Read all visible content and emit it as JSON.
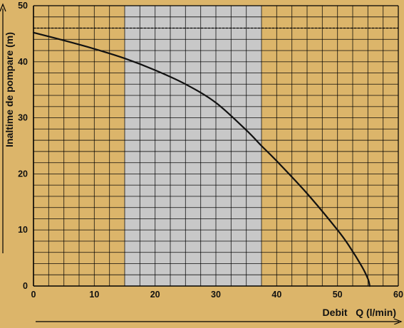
{
  "chart_data": {
    "type": "line",
    "title": "",
    "xlabel": "Debit   Q (l/min)",
    "ylabel": "Inaltime de pompare (m)",
    "xlim": [
      0,
      60
    ],
    "ylim": [
      0,
      50
    ],
    "x_ticks": [
      "0",
      "10",
      "20",
      "30",
      "40",
      "50",
      "60"
    ],
    "y_ticks": [
      "0",
      "10",
      "20",
      "30",
      "40",
      "50"
    ],
    "grid": true,
    "highlight_band": {
      "x_from": 15,
      "x_to": 37.5
    },
    "reference_line_y": 46,
    "series": [
      {
        "x": [
          0,
          5,
          10,
          15,
          20,
          25,
          30,
          35,
          37.5,
          40,
          45,
          50,
          52,
          54,
          55,
          55.3
        ],
        "y": [
          45.2,
          43.8,
          42.3,
          40.6,
          38.5,
          36.0,
          32.7,
          27.8,
          25.0,
          22.3,
          16.5,
          10.0,
          7.0,
          3.5,
          1.3,
          0
        ]
      }
    ]
  },
  "colors": {
    "background": "#dcb56a",
    "band": "#c8c8c8",
    "grid": "#000000",
    "curve": "#111111",
    "text": "#111111"
  }
}
